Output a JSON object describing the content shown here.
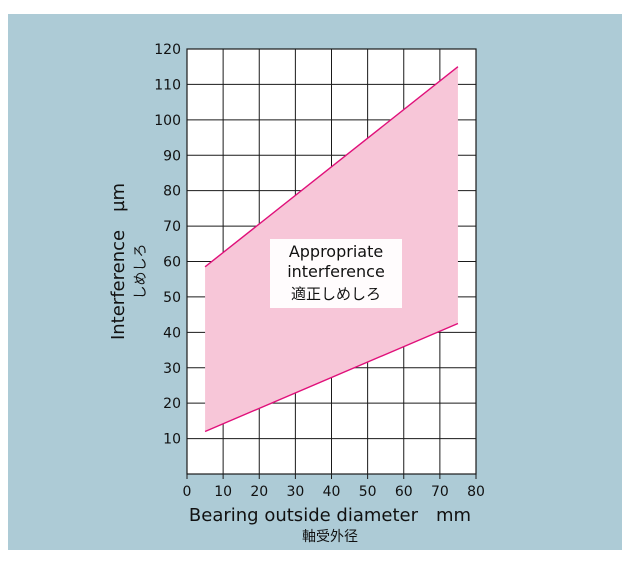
{
  "chart_data": {
    "type": "area",
    "x": [
      5,
      75
    ],
    "series": [
      {
        "values": [
          58.5,
          115
        ]
      },
      {
        "values": [
          12,
          42.5
        ]
      }
    ],
    "band_label": [
      "Appropriate",
      "interference",
      "適正しめしろ"
    ],
    "xlabel": "Bearing outside diameter　mm",
    "xlabel_sub": "軸受外径",
    "ylabel": "Interference　µm",
    "ylabel_sub": "しめしろ",
    "xlim": [
      0,
      80
    ],
    "ylim": [
      0,
      120
    ],
    "xticks": [
      0,
      10,
      20,
      30,
      40,
      50,
      60,
      70,
      80
    ],
    "yticks": [
      10,
      20,
      30,
      40,
      50,
      60,
      70,
      80,
      90,
      100,
      110,
      120
    ],
    "grid": true
  },
  "colors": {
    "background": "#adcbd6",
    "plot_area": "#ffffff",
    "band_fill": "#f7c6d8",
    "boundary_line": "#e0107a",
    "grid": "#1a1a1a"
  }
}
